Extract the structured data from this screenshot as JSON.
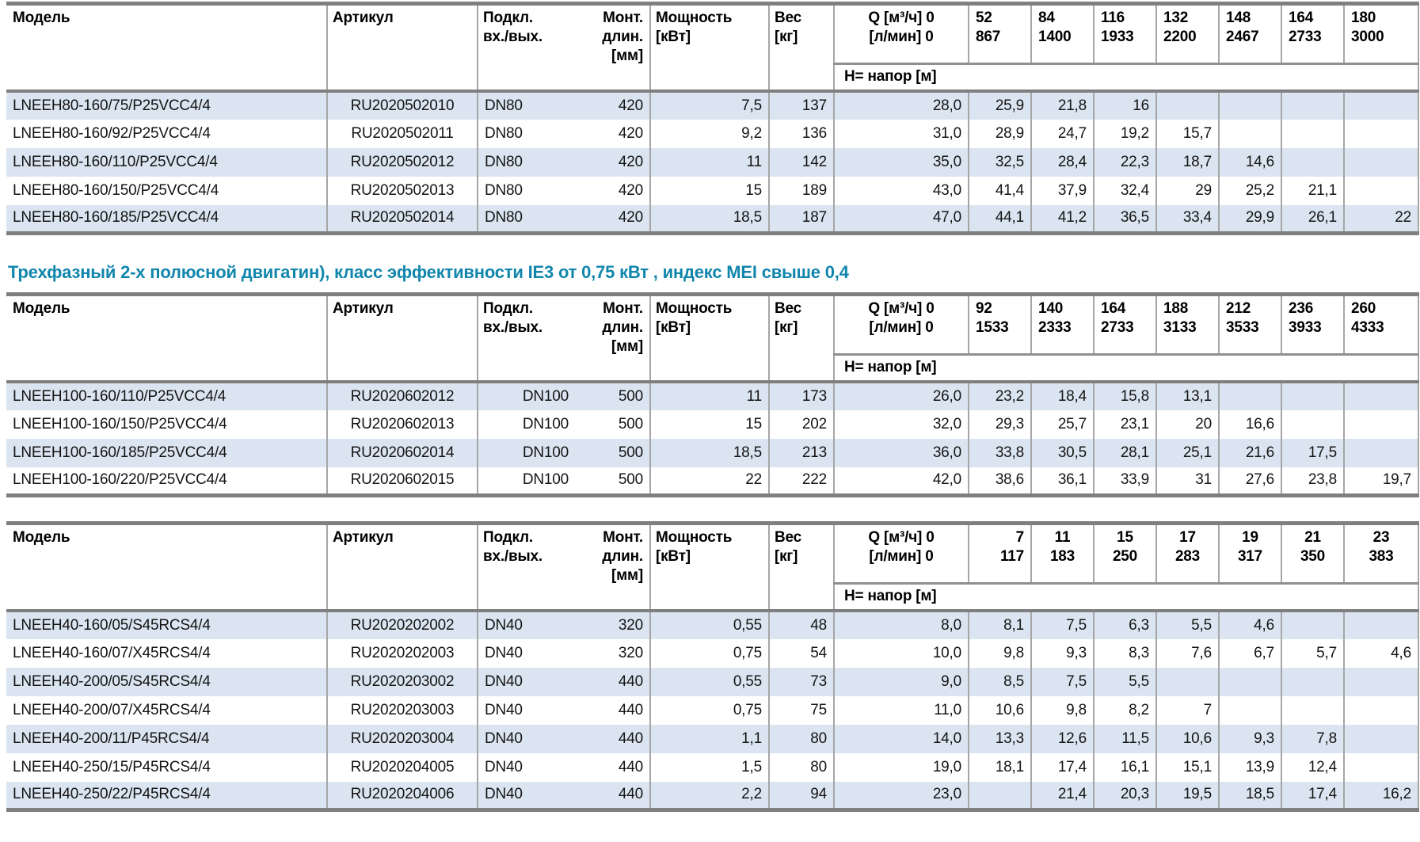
{
  "section_title": {
    "text": "Трехфазный 2-х полюсной двигатин), класс эффективности IE3 от 0,75 кВт ,  индекс MEI свыше 0,4"
  },
  "colors": {
    "stripe": "#dbe5f1",
    "thick_bar": "#7f7f7f",
    "divider": "#a6a6a6",
    "mid_bar": "#8f8f8f",
    "title_accent": "#1186ad"
  },
  "columns": {
    "model": "Модель",
    "article": "Артикул",
    "conn_line1": "Подкл.",
    "conn_line2": "вх./вых.",
    "mount_line1": "Монт.",
    "mount_line2": "длин.",
    "mount_line3": "[мм]",
    "power_line1": "Мощность",
    "power_line2": "[кВт]",
    "weight_line1": "Вес",
    "weight_line2": "[кг]",
    "q_line1": "Q [м³/ч] 0",
    "q_line2": "[л/мин] 0",
    "head_label": "H= напор [м]"
  },
  "tables": [
    {
      "id": "lneeh80",
      "flows": [
        {
          "m3h": "52",
          "lmin": "867"
        },
        {
          "m3h": "84",
          "lmin": "1400"
        },
        {
          "m3h": "116",
          "lmin": "1933"
        },
        {
          "m3h": "132",
          "lmin": "2200"
        },
        {
          "m3h": "148",
          "lmin": "2467"
        },
        {
          "m3h": "164",
          "lmin": "2733"
        },
        {
          "m3h": "180",
          "lmin": "3000"
        }
      ],
      "rows": [
        {
          "model": "LNEEH80-160/75/P25VCC4/4",
          "article": "RU2020502010",
          "conn": "DN80",
          "mount": "420",
          "power": "7,5",
          "weight": "137",
          "head": [
            "28,0",
            "25,9",
            "21,8",
            "16",
            "",
            "",
            "",
            ""
          ]
        },
        {
          "model": "LNEEH80-160/92/P25VCC4/4",
          "article": "RU2020502011",
          "conn": "DN80",
          "mount": "420",
          "power": "9,2",
          "weight": "136",
          "head": [
            "31,0",
            "28,9",
            "24,7",
            "19,2",
            "15,7",
            "",
            "",
            ""
          ]
        },
        {
          "model": "LNEEH80-160/110/P25VCC4/4",
          "article": "RU2020502012",
          "conn": "DN80",
          "mount": "420",
          "power": "11",
          "weight": "142",
          "head": [
            "35,0",
            "32,5",
            "28,4",
            "22,3",
            "18,7",
            "14,6",
            "",
            ""
          ]
        },
        {
          "model": "LNEEH80-160/150/P25VCC4/4",
          "article": "RU2020502013",
          "conn": "DN80",
          "mount": "420",
          "power": "15",
          "weight": "189",
          "head": [
            "43,0",
            "41,4",
            "37,9",
            "32,4",
            "29",
            "25,2",
            "21,1",
            ""
          ]
        },
        {
          "model": "LNEEH80-160/185/P25VCC4/4",
          "article": "RU2020502014",
          "conn": "DN80",
          "mount": "420",
          "power": "18,5",
          "weight": "187",
          "head": [
            "47,0",
            "44,1",
            "41,2",
            "36,5",
            "33,4",
            "29,9",
            "26,1",
            "22"
          ]
        }
      ]
    },
    {
      "id": "lneeh100",
      "flows": [
        {
          "m3h": "92",
          "lmin": "1533"
        },
        {
          "m3h": "140",
          "lmin": "2333"
        },
        {
          "m3h": "164",
          "lmin": "2733"
        },
        {
          "m3h": "188",
          "lmin": "3133"
        },
        {
          "m3h": "212",
          "lmin": "3533"
        },
        {
          "m3h": "236",
          "lmin": "3933"
        },
        {
          "m3h": "260",
          "lmin": "4333"
        }
      ],
      "rows": [
        {
          "model": "LNEEH100-160/110/P25VCC4/4",
          "article": "RU2020602012",
          "conn": "DN100",
          "mount": "500",
          "power": "11",
          "weight": "173",
          "head": [
            "26,0",
            "23,2",
            "18,4",
            "15,8",
            "13,1",
            "",
            "",
            ""
          ]
        },
        {
          "model": "LNEEH100-160/150/P25VCC4/4",
          "article": "RU2020602013",
          "conn": "DN100",
          "mount": "500",
          "power": "15",
          "weight": "202",
          "head": [
            "32,0",
            "29,3",
            "25,7",
            "23,1",
            "20",
            "16,6",
            "",
            ""
          ]
        },
        {
          "model": "LNEEH100-160/185/P25VCC4/4",
          "article": "RU2020602014",
          "conn": "DN100",
          "mount": "500",
          "power": "18,5",
          "weight": "213",
          "head": [
            "36,0",
            "33,8",
            "30,5",
            "28,1",
            "25,1",
            "21,6",
            "17,5",
            ""
          ]
        },
        {
          "model": "LNEEH100-160/220/P25VCC4/4",
          "article": "RU2020602015",
          "conn": "DN100",
          "mount": "500",
          "power": "22",
          "weight": "222",
          "head": [
            "42,0",
            "38,6",
            "36,1",
            "33,9",
            "31",
            "27,6",
            "23,8",
            "19,7"
          ]
        }
      ]
    },
    {
      "id": "lneeh40",
      "flows": [
        {
          "m3h": "7",
          "lmin": "117"
        },
        {
          "m3h": "11",
          "lmin": "183"
        },
        {
          "m3h": "15",
          "lmin": "250"
        },
        {
          "m3h": "17",
          "lmin": "283"
        },
        {
          "m3h": "19",
          "lmin": "317"
        },
        {
          "m3h": "21",
          "lmin": "350"
        },
        {
          "m3h": "23",
          "lmin": "383"
        }
      ],
      "rows": [
        {
          "model": "LNEEH40-160/05/S45RCS4/4",
          "article": "RU2020202002",
          "conn": "DN40",
          "mount": "320",
          "power": "0,55",
          "weight": "48",
          "head": [
            "8,0",
            "8,1",
            "7,5",
            "6,3",
            "5,5",
            "4,6",
            "",
            ""
          ]
        },
        {
          "model": "LNEEH40-160/07/X45RCS4/4",
          "article": "RU2020202003",
          "conn": "DN40",
          "mount": "320",
          "power": "0,75",
          "weight": "54",
          "head": [
            "10,0",
            "9,8",
            "9,3",
            "8,3",
            "7,6",
            "6,7",
            "5,7",
            "4,6"
          ]
        },
        {
          "model": "LNEEH40-200/05/S45RCS4/4",
          "article": "RU2020203002",
          "conn": "DN40",
          "mount": "440",
          "power": "0,55",
          "weight": "73",
          "head": [
            "9,0",
            "8,5",
            "7,5",
            "5,5",
            "",
            "",
            "",
            ""
          ]
        },
        {
          "model": "LNEEH40-200/07/X45RCS4/4",
          "article": "RU2020203003",
          "conn": "DN40",
          "mount": "440",
          "power": "0,75",
          "weight": "75",
          "head": [
            "11,0",
            "10,6",
            "9,8",
            "8,2",
            "7",
            "",
            "",
            ""
          ]
        },
        {
          "model": "LNEEH40-200/11/P45RCS4/4",
          "article": "RU2020203004",
          "conn": "DN40",
          "mount": "440",
          "power": "1,1",
          "weight": "80",
          "head": [
            "14,0",
            "13,3",
            "12,6",
            "11,5",
            "10,6",
            "9,3",
            "7,8",
            ""
          ]
        },
        {
          "model": "LNEEH40-250/15/P45RCS4/4",
          "article": "RU2020204005",
          "conn": "DN40",
          "mount": "440",
          "power": "1,5",
          "weight": "80",
          "head": [
            "19,0",
            "18,1",
            "17,4",
            "16,1",
            "15,1",
            "13,9",
            "12,4",
            ""
          ]
        },
        {
          "model": "LNEEH40-250/22/P45RCS4/4",
          "article": "RU2020204006",
          "conn": "DN40",
          "mount": "440",
          "power": "2,2",
          "weight": "94",
          "head": [
            "23,0",
            "",
            "21,4",
            "20,3",
            "19,5",
            "18,5",
            "17,4",
            "16,2"
          ]
        }
      ]
    }
  ]
}
